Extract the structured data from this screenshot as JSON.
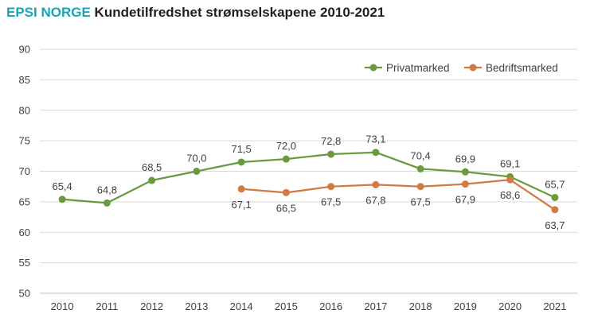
{
  "chart_data": {
    "type": "line",
    "title_brand": "EPSI NORGE",
    "title": "Kundetilfredshet strømselskapene 2010-2021",
    "categories": [
      "2010",
      "2011",
      "2012",
      "2013",
      "2014",
      "2015",
      "2016",
      "2017",
      "2018",
      "2019",
      "2020",
      "2021"
    ],
    "ylim": [
      50,
      90
    ],
    "yticks": [
      "90",
      "85",
      "80",
      "75",
      "70",
      "65",
      "60",
      "55",
      "50"
    ],
    "legend_position": "top-right",
    "series": [
      {
        "name": "Privatmarked",
        "color": "#6a9a3f",
        "values": [
          65.4,
          64.8,
          68.5,
          70.0,
          71.5,
          72.0,
          72.8,
          73.1,
          70.4,
          69.9,
          69.1,
          65.7
        ],
        "labels": [
          "65,4",
          "64,8",
          "68,5",
          "70,0",
          "71,5",
          "72,0",
          "72,8",
          "73,1",
          "70,4",
          "69,9",
          "69,1",
          "65,7"
        ]
      },
      {
        "name": "Bedriftsmarked",
        "color": "#d07a45",
        "values": [
          null,
          null,
          null,
          null,
          67.1,
          66.5,
          67.5,
          67.8,
          67.5,
          67.9,
          68.6,
          63.7
        ],
        "labels": [
          null,
          null,
          null,
          null,
          "67,1",
          "66,5",
          "67,5",
          "67,8",
          "67,5",
          "67,9",
          "68,6",
          "63,7"
        ]
      }
    ]
  }
}
